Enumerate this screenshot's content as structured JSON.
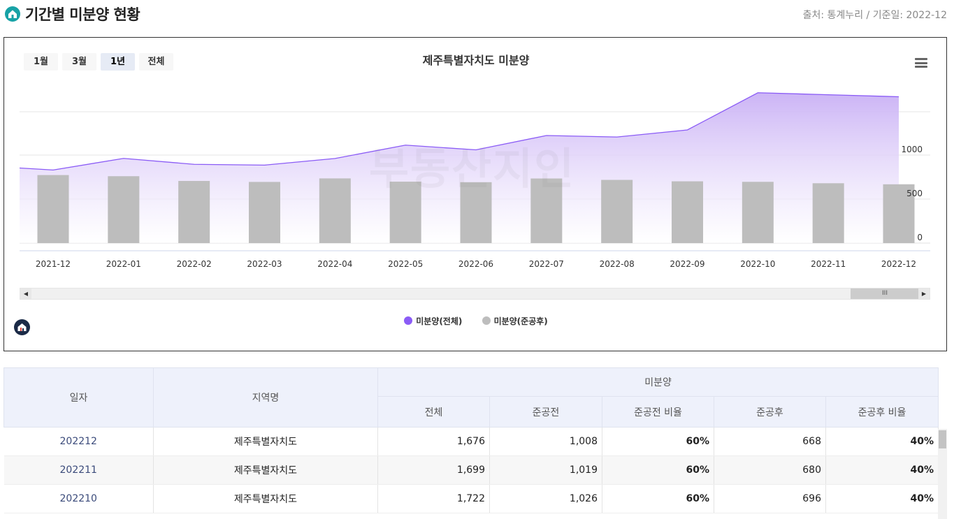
{
  "header": {
    "title": "기간별 미분양 현황",
    "source": "출처: 통계누리 / 기준일: 2022-12"
  },
  "chart_controls": {
    "range_buttons": [
      "1월",
      "3월",
      "1년",
      "전체"
    ],
    "active_range": "1년"
  },
  "watermark": "부동산지인",
  "chart_data": {
    "type": "line+bar",
    "title": "제주특별자치도 미분양",
    "categories": [
      "2021-12",
      "2022-01",
      "2022-02",
      "2022-03",
      "2022-04",
      "2022-05",
      "2022-06",
      "2022-07",
      "2022-08",
      "2022-09",
      "2022-10",
      "2022-11",
      "2022-12"
    ],
    "y_ticks": [
      "0",
      "500",
      "1000"
    ],
    "series": [
      {
        "name": "미분양(전체)",
        "type": "area",
        "color": "#8b5cf6",
        "lead_in_value": 860,
        "values": [
          837,
          970,
          902,
          893,
          969,
          1122,
          1068,
          1232,
          1215,
          1296,
          1722,
          1699,
          1676
        ]
      },
      {
        "name": "미분양(준공후)",
        "type": "bar",
        "color": "#bdbdbd",
        "values": [
          773,
          760,
          706,
          695,
          735,
          698,
          692,
          734,
          718,
          702,
          696,
          680,
          668
        ]
      }
    ]
  },
  "table": {
    "headers": {
      "date": "일자",
      "region": "지역명",
      "group": "미분양",
      "total": "전체",
      "before": "준공전",
      "before_ratio": "준공전 비율",
      "after": "준공후",
      "after_ratio": "준공후 비율"
    },
    "rows": [
      {
        "date": "202212",
        "region": "제주특별자치도",
        "total": "1,676",
        "before": "1,008",
        "before_ratio": "60%",
        "after": "668",
        "after_ratio": "40%"
      },
      {
        "date": "202211",
        "region": "제주특별자치도",
        "total": "1,699",
        "before": "1,019",
        "before_ratio": "60%",
        "after": "680",
        "after_ratio": "40%"
      },
      {
        "date": "202210",
        "region": "제주특별자치도",
        "total": "1,722",
        "before": "1,026",
        "before_ratio": "60%",
        "after": "696",
        "after_ratio": "40%"
      }
    ]
  }
}
